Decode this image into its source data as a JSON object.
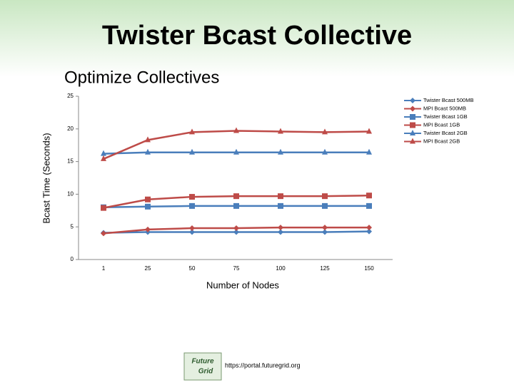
{
  "slide_title": "Twister Bcast Collective",
  "chart_data": {
    "type": "line",
    "title": "Optimize Collectives",
    "x_label": "Number of Nodes",
    "y_label": "Bcast Time (Seconds)",
    "categories": [
      "1",
      "25",
      "50",
      "75",
      "100",
      "125",
      "150"
    ],
    "ylim": [
      0,
      25
    ],
    "yticks": [
      0,
      5,
      10,
      15,
      20,
      25
    ],
    "grid": false,
    "legend": "right",
    "series": [
      {
        "name": "Twister Bcast 500MB",
        "color": "#4a7ebb",
        "marker": "diamond",
        "values": [
          4.1,
          4.2,
          4.2,
          4.2,
          4.2,
          4.2,
          4.3
        ]
      },
      {
        "name": "MPI Bcast 500MB",
        "color": "#be4b48",
        "marker": "diamond",
        "values": [
          4.0,
          4.6,
          4.8,
          4.8,
          4.9,
          4.9,
          4.9
        ]
      },
      {
        "name": "Twister Bcast 1GB",
        "color": "#4a7ebb",
        "marker": "square",
        "values": [
          8.0,
          8.1,
          8.2,
          8.2,
          8.2,
          8.2,
          8.2
        ]
      },
      {
        "name": "MPI Bcast 1GB",
        "color": "#be4b48",
        "marker": "square",
        "values": [
          7.9,
          9.2,
          9.6,
          9.7,
          9.7,
          9.7,
          9.8
        ]
      },
      {
        "name": "Twister Bcast 2GB",
        "color": "#4a7ebb",
        "marker": "triangle",
        "values": [
          16.2,
          16.4,
          16.4,
          16.4,
          16.4,
          16.4,
          16.4
        ]
      },
      {
        "name": "MPI Bcast 2GB",
        "color": "#be4b48",
        "marker": "triangle",
        "values": [
          15.4,
          18.3,
          19.5,
          19.7,
          19.6,
          19.5,
          19.6
        ]
      }
    ]
  },
  "footer": {
    "logo_top": "Future",
    "logo_bottom": "Grid",
    "url": "https://portal.futuregrid.org"
  }
}
